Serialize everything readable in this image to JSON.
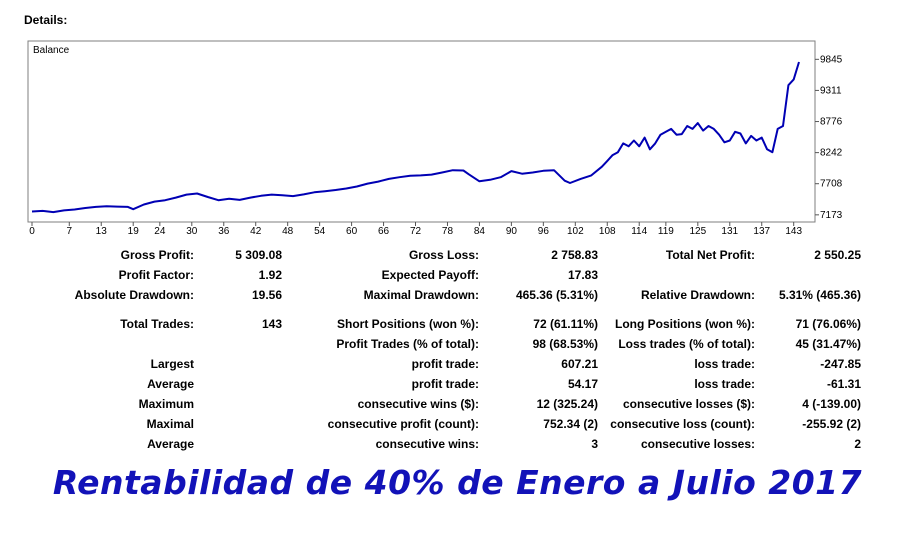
{
  "header": {
    "details_label": "Details:"
  },
  "chart_data": {
    "type": "line",
    "title": "Balance",
    "x_ticks": [
      0,
      7,
      13,
      19,
      24,
      30,
      36,
      42,
      48,
      54,
      60,
      66,
      72,
      78,
      84,
      90,
      96,
      102,
      108,
      114,
      119,
      125,
      131,
      137,
      143
    ],
    "y_ticks": [
      9845,
      9311,
      8776,
      8242,
      7708,
      7173
    ],
    "xlim": [
      0,
      147
    ],
    "ylim": [
      7050,
      10160
    ],
    "grid": false,
    "series": [
      {
        "color": "#0000b4",
        "x": [
          0,
          2,
          4,
          6,
          8,
          10,
          12,
          14,
          16,
          18,
          19,
          21,
          23,
          25,
          27,
          29,
          31,
          33,
          35,
          37,
          39,
          41,
          43,
          45,
          47,
          49,
          51,
          53,
          55,
          57,
          59,
          61,
          63,
          65,
          67,
          69,
          71,
          73,
          75,
          77,
          79,
          81,
          82,
          84,
          86,
          88,
          90,
          92,
          94,
          96,
          98,
          100,
          101,
          103,
          105,
          107,
          108,
          109,
          110,
          111,
          112,
          113,
          114,
          115,
          116,
          117,
          118,
          119,
          120,
          121,
          122,
          123,
          124,
          125,
          126,
          127,
          128,
          129,
          130,
          131,
          132,
          133,
          134,
          135,
          136,
          137,
          138,
          139,
          140,
          141,
          142,
          143,
          144
        ],
        "y": [
          7230,
          7240,
          7220,
          7250,
          7265,
          7290,
          7310,
          7320,
          7315,
          7310,
          7270,
          7350,
          7400,
          7425,
          7470,
          7520,
          7540,
          7480,
          7425,
          7450,
          7430,
          7470,
          7500,
          7520,
          7510,
          7495,
          7525,
          7560,
          7580,
          7600,
          7625,
          7660,
          7710,
          7745,
          7790,
          7820,
          7845,
          7850,
          7865,
          7900,
          7940,
          7935,
          7870,
          7750,
          7775,
          7820,
          7925,
          7880,
          7900,
          7930,
          7940,
          7760,
          7720,
          7790,
          7850,
          8000,
          8100,
          8200,
          8250,
          8400,
          8350,
          8450,
          8350,
          8500,
          8300,
          8400,
          8550,
          8600,
          8650,
          8550,
          8560,
          8700,
          8650,
          8750,
          8620,
          8700,
          8650,
          8550,
          8420,
          8450,
          8600,
          8570,
          8400,
          8530,
          8450,
          8500,
          8300,
          8250,
          8650,
          8700,
          9400,
          9500,
          9800
        ]
      }
    ]
  },
  "stats": {
    "gross_profit_label": "Gross Profit:",
    "gross_profit_value": "5 309.08",
    "gross_loss_label": "Gross Loss:",
    "gross_loss_value": "2 758.83",
    "total_net_profit_label": "Total Net Profit:",
    "total_net_profit_value": "2 550.25",
    "profit_factor_label": "Profit Factor:",
    "profit_factor_value": "1.92",
    "expected_payoff_label": "Expected Payoff:",
    "expected_payoff_value": "17.83",
    "absolute_drawdown_label": "Absolute Drawdown:",
    "absolute_drawdown_value": "19.56",
    "maximal_drawdown_label": "Maximal Drawdown:",
    "maximal_drawdown_value": "465.36 (5.31%)",
    "relative_drawdown_label": "Relative Drawdown:",
    "relative_drawdown_value": "5.31% (465.36)",
    "total_trades_label": "Total Trades:",
    "total_trades_value": "143",
    "short_positions_label": "Short Positions (won %):",
    "short_positions_value": "72 (61.11%)",
    "long_positions_label": "Long Positions (won %):",
    "long_positions_value": "71 (76.06%)",
    "profit_trades_label": "Profit Trades (% of total):",
    "profit_trades_value": "98 (68.53%)",
    "loss_trades_label": "Loss trades (% of total):",
    "loss_trades_value": "45 (31.47%)",
    "largest_label": "Largest",
    "largest_profit_label": "profit trade:",
    "largest_profit_value": "607.21",
    "largest_loss_label": "loss trade:",
    "largest_loss_value": "-247.85",
    "average_label": "Average",
    "average_profit_label": "profit trade:",
    "average_profit_value": "54.17",
    "average_loss_label": "loss trade:",
    "average_loss_value": "-61.31",
    "maximum_label": "Maximum",
    "max_consec_wins_label": "consecutive wins ($):",
    "max_consec_wins_value": "12 (325.24)",
    "max_consec_losses_label": "consecutive losses ($):",
    "max_consec_losses_value": "4 (-139.00)",
    "maximal_label": "Maximal",
    "maximal_consec_profit_label": "consecutive profit (count):",
    "maximal_consec_profit_value": "752.34 (2)",
    "maximal_consec_loss_label": "consecutive loss (count):",
    "maximal_consec_loss_value": "-255.92 (2)",
    "average2_label": "Average",
    "avg_consec_wins_label": "consecutive wins:",
    "avg_consec_wins_value": "3",
    "avg_consec_losses_label": "consecutive losses:",
    "avg_consec_losses_value": "2"
  },
  "footer": {
    "title": "Rentabilidad de 40% de Enero a Julio 2017",
    "title_color": "#1212b8"
  }
}
